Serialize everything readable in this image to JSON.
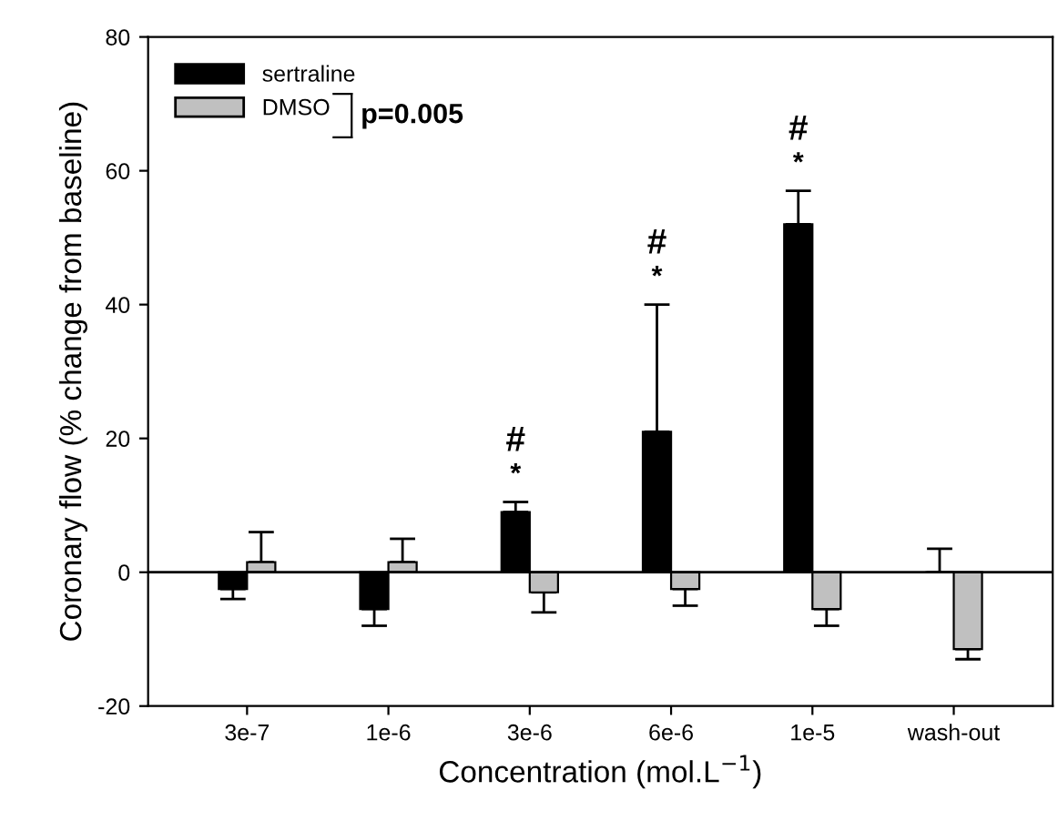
{
  "chart_data": {
    "type": "bar",
    "xlabel": "Concentration (mol.L$^{−1}$)",
    "ylabel": "Coronary flow (% change from baseline)",
    "categories": [
      "3e-7",
      "1e-6",
      "3e-6",
      "6e-6",
      "1e-5",
      "wash-out"
    ],
    "series": [
      {
        "name": "sertraline",
        "color": "#000000",
        "values": [
          -2.5,
          -5.5,
          9,
          21,
          52,
          0
        ],
        "errors": [
          [
            -4,
            -2.5
          ],
          [
            -8,
            -5.5
          ],
          [
            9,
            10.5
          ],
          [
            21,
            40
          ],
          [
            52,
            57
          ],
          [
            0,
            3.5
          ]
        ]
      },
      {
        "name": "DMSO",
        "color": "#c0c0c0",
        "values": [
          1.5,
          1.5,
          -3,
          -2.5,
          -5.5,
          -11.5
        ],
        "errors": [
          [
            1.5,
            6
          ],
          [
            1.5,
            5
          ],
          [
            -6,
            -3
          ],
          [
            -5,
            -2.5
          ],
          [
            -8,
            -5.5
          ],
          [
            -13,
            -11.5
          ]
        ]
      }
    ],
    "ylim": [
      -20,
      80
    ],
    "yticks": [
      -20,
      0,
      20,
      40,
      60,
      80
    ],
    "ref_lines": [
      {
        "axis": "y",
        "value": 0,
        "label": null,
        "color": "#000000"
      }
    ],
    "legend": "top left",
    "grid": false,
    "annotations": [
      "p=0.005",
      {
        "text": "*",
        "x": "3e-6",
        "y": 9
      },
      {
        "text": "#",
        "x": "3e-6",
        "y": 9
      },
      {
        "text": "*",
        "x": "6e-6",
        "y": 40
      },
      {
        "text": "#",
        "x": "6e-6",
        "y": 40
      },
      {
        "text": "*",
        "x": "1e-5",
        "y": 52
      },
      {
        "text": "#",
        "x": "1e-5",
        "y": 52
      }
    ]
  }
}
